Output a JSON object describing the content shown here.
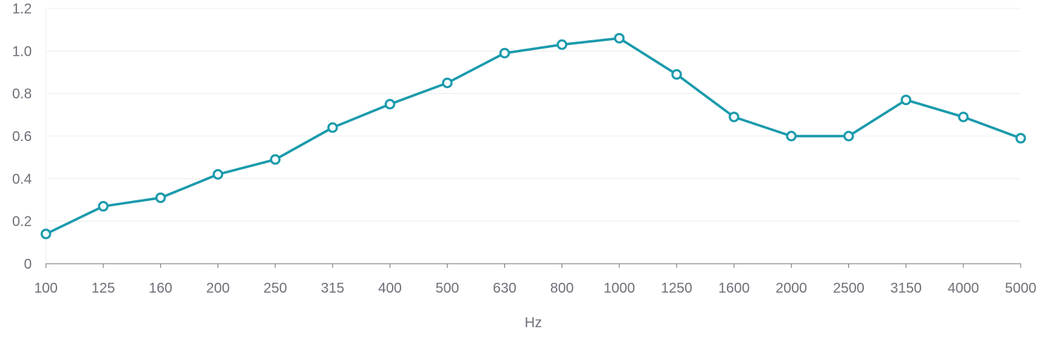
{
  "chart_data": {
    "type": "line",
    "title": "",
    "xlabel": "Hz",
    "ylabel": "",
    "categories": [
      "100",
      "125",
      "160",
      "200",
      "250",
      "315",
      "400",
      "500",
      "630",
      "800",
      "1000",
      "1250",
      "1600",
      "2000",
      "2500",
      "3150",
      "4000",
      "5000"
    ],
    "series": [
      {
        "values": [
          0.14,
          0.27,
          0.31,
          0.42,
          0.49,
          0.64,
          0.75,
          0.85,
          0.99,
          1.03,
          1.06,
          0.89,
          0.69,
          0.6,
          0.6,
          0.77,
          0.69,
          0.59
        ]
      }
    ],
    "ylim": [
      0,
      1.2
    ],
    "yticks": [
      "0",
      "0.2",
      "0.4",
      "0.6",
      "0.8",
      "1.0",
      "1.2"
    ],
    "grid": true,
    "legend": "none",
    "colors": {
      "line": "#1a9aac",
      "marker_fill": "#ffffff",
      "grid": "#ececec",
      "axis": "#6e7079",
      "text": "#6e7079"
    }
  }
}
